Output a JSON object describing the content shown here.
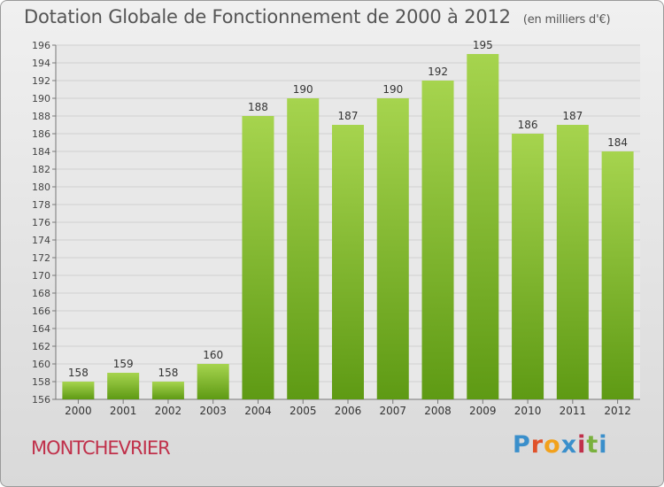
{
  "header": {
    "title": "Dotation Globale de Fonctionnement de 2000 à 2012",
    "unit": "(en milliers d'€)"
  },
  "commune": "MONTCHEVRIER",
  "logo": {
    "letters": [
      "P",
      "r",
      "o",
      "x",
      "i",
      "t",
      "i"
    ],
    "colors": [
      "#3a8fcb",
      "#e0522a",
      "#f2a11c",
      "#3a8fcb",
      "#c0304a",
      "#7ab13e",
      "#3a8fcb"
    ]
  },
  "colors": {
    "bar_top": "#a6d44e",
    "bar_bottom": "#5e9a14",
    "grid": "#cfcfcf"
  },
  "chart_data": {
    "type": "bar",
    "categories": [
      "2000",
      "2001",
      "2002",
      "2003",
      "2004",
      "2005",
      "2006",
      "2007",
      "2008",
      "2009",
      "2010",
      "2011",
      "2012"
    ],
    "values": [
      158,
      159,
      158,
      160,
      188,
      190,
      187,
      190,
      192,
      195,
      186,
      187,
      184
    ],
    "data_labels": [
      "158",
      "159",
      "158",
      "160",
      "188",
      "190",
      "187",
      "190",
      "192",
      "195",
      "186",
      "187",
      "184"
    ],
    "ylim": [
      156,
      196
    ],
    "yticks": [
      156,
      158,
      160,
      162,
      164,
      166,
      168,
      170,
      172,
      174,
      176,
      178,
      180,
      182,
      184,
      186,
      188,
      190,
      192,
      194,
      196
    ],
    "ytick_labels": [
      "156",
      "158",
      "160",
      "162",
      "164",
      "166",
      "168",
      "170",
      "172",
      "174",
      "176",
      "178",
      "180",
      "182",
      "184",
      "186",
      "188",
      "190",
      "192",
      "194",
      "196"
    ],
    "grid": true,
    "legend": false
  }
}
